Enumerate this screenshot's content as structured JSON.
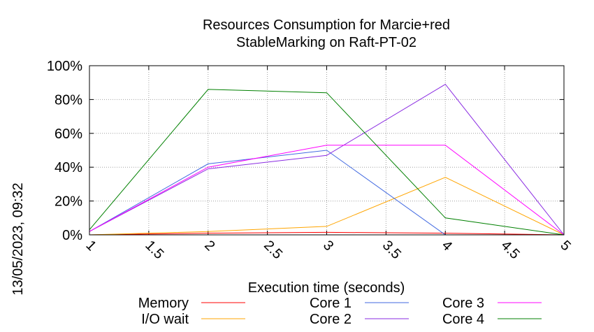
{
  "chart_data": {
    "type": "line",
    "title_lines": [
      "Resources Consumption for Marcie+red",
      "StableMarking on Raft-PT-02"
    ],
    "xlabel": "Execution time (seconds)",
    "ylabel": "",
    "side_label": "13/05/2023, 09:32",
    "xlim": [
      1,
      5
    ],
    "ylim": [
      0,
      100
    ],
    "x_ticks": [
      "1",
      "1.5",
      "2",
      "2.5",
      "3",
      "3.5",
      "4",
      "4.5",
      "5"
    ],
    "y_ticks": [
      "0%",
      "20%",
      "40%",
      "60%",
      "80%",
      "100%"
    ],
    "grid": true,
    "legend_position": "bottom",
    "x": [
      1,
      2,
      3,
      4,
      5
    ],
    "series": [
      {
        "name": "Memory",
        "color": "#ff0000",
        "values": [
          0,
          1,
          1.5,
          1,
          0
        ]
      },
      {
        "name": "I/O wait",
        "color": "#ffa500",
        "values": [
          0,
          2,
          5,
          34,
          0
        ]
      },
      {
        "name": "Core 1",
        "color": "#4169e1",
        "values": [
          2,
          42,
          50,
          0,
          0
        ]
      },
      {
        "name": "Core 2",
        "color": "#8a2be2",
        "values": [
          2,
          39,
          47,
          89,
          0
        ]
      },
      {
        "name": "Core 3",
        "color": "#ff00ff",
        "values": [
          2,
          40,
          53,
          53,
          0
        ]
      },
      {
        "name": "Core 4",
        "color": "#008000",
        "values": [
          3,
          86,
          84,
          10,
          0
        ]
      }
    ]
  }
}
